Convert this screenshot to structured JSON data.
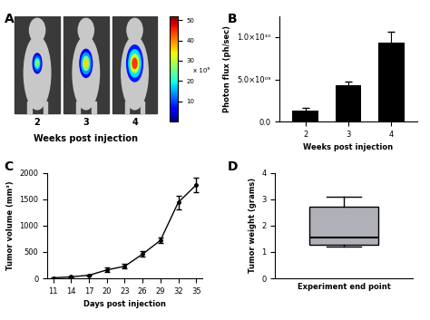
{
  "chart_data": [
    {
      "type": "image",
      "panel": "A",
      "categories": [
        "2",
        "3",
        "4"
      ],
      "x_label": "Weeks post injection",
      "colorbar_range": [
        0,
        52
      ],
      "colorbar_ticks": [
        10,
        20,
        30,
        40,
        50
      ],
      "colorbar_label": "x 10⁸"
    },
    {
      "type": "bar",
      "panel": "B",
      "categories": [
        "2",
        "3",
        "4"
      ],
      "values": [
        1300000000,
        4300000000,
        9400000000
      ],
      "errors": [
        300000000,
        400000000,
        1200000000
      ],
      "color": "#000000",
      "x_label": "Weeks post injection",
      "y_label": "Photon flux (ph/sec)",
      "ylim": [
        0,
        12500000000
      ],
      "yticks": [
        {
          "value": 0,
          "label": "0.0"
        },
        {
          "value": 5000000000,
          "label": "5.0×10⁰⁹"
        },
        {
          "value": 10000000000,
          "label": "1.0×10¹⁰"
        }
      ]
    },
    {
      "type": "line",
      "panel": "C",
      "x": [
        11,
        14,
        17,
        20,
        23,
        26,
        29,
        32,
        35
      ],
      "values": [
        10,
        30,
        60,
        160,
        230,
        460,
        720,
        1440,
        1770
      ],
      "errors": [
        5,
        10,
        15,
        40,
        40,
        50,
        50,
        130,
        130
      ],
      "color": "#000000",
      "marker": "o",
      "x_label": "Days post injection",
      "y_label": "Tumor volume (mm³)",
      "xlim": [
        10,
        36
      ],
      "xticks": [
        11,
        14,
        17,
        20,
        23,
        26,
        29,
        32,
        35
      ],
      "ylim": [
        0,
        2000
      ],
      "yticks": [
        0,
        500,
        1000,
        1500,
        2000
      ]
    },
    {
      "type": "box",
      "panel": "D",
      "categories": [
        "Experiment end point"
      ],
      "stats": {
        "min": 1.22,
        "q1": 1.28,
        "median": 1.55,
        "q3": 2.7,
        "max": 3.08
      },
      "color": "#b0b0b8",
      "y_label": "Tumor weight (grams)",
      "ylim": [
        0,
        4
      ],
      "yticks": [
        0,
        1,
        2,
        3,
        4
      ]
    }
  ]
}
